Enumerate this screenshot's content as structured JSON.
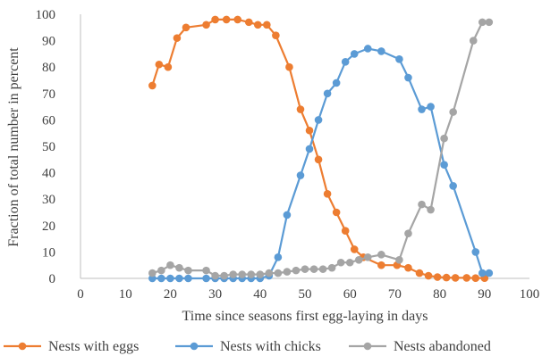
{
  "chart_data": {
    "type": "line",
    "xlabel": "Time since seasons first egg-laying in days",
    "ylabel": "Fraction of total number in percent",
    "xlim": [
      0,
      100
    ],
    "ylim": [
      0,
      100
    ],
    "x_ticks": [
      0,
      10,
      20,
      30,
      40,
      50,
      60,
      70,
      80,
      90,
      100
    ],
    "y_ticks": [
      0,
      10,
      20,
      30,
      40,
      50,
      60,
      70,
      80,
      90,
      100
    ],
    "x_tick_labels": [
      "0",
      "10",
      "20",
      "30",
      "40",
      "50",
      "60",
      "70",
      "80",
      "90",
      "100"
    ],
    "y_tick_labels": [
      "0",
      "10",
      "20",
      "30",
      "40",
      "50",
      "60",
      "70",
      "80",
      "90",
      "100"
    ],
    "grid": false,
    "legend_position": "bottom",
    "series": [
      {
        "name": "Nests with eggs",
        "color": "#ed7d31",
        "x": [
          16,
          17.5,
          19.5,
          21.5,
          23.5,
          28,
          30,
          32.5,
          35,
          37.5,
          39.5,
          41.5,
          43.5,
          46.5,
          49,
          51,
          53,
          55,
          57,
          59,
          61,
          63,
          67,
          70.5,
          73,
          75.5,
          77.5,
          79.5,
          81.5,
          83.5,
          86,
          88,
          90
        ],
        "y": [
          73,
          81,
          80,
          91,
          95,
          96,
          98,
          98,
          98,
          97,
          96,
          96,
          92,
          80,
          64,
          56,
          45,
          32,
          25,
          18,
          11,
          8,
          5,
          5,
          4,
          2,
          1,
          0.5,
          0.3,
          0.2,
          0.2,
          0.1,
          0.1
        ]
      },
      {
        "name": "Nests with chicks",
        "color": "#5b9bd5",
        "x": [
          16,
          18,
          20,
          22,
          24,
          28,
          30,
          32,
          34,
          36,
          38,
          40,
          42,
          44,
          46,
          49,
          51,
          53,
          55,
          57,
          59,
          61,
          64,
          67,
          71,
          73,
          76,
          78,
          81,
          83,
          88,
          89.5,
          91
        ],
        "y": [
          0,
          0,
          0,
          0,
          0,
          0,
          0,
          0,
          0,
          0,
          0,
          0,
          1,
          8,
          24,
          39,
          49,
          60,
          70,
          74,
          82,
          85,
          87,
          86,
          83,
          76,
          64,
          65,
          43,
          35,
          10,
          2,
          2
        ]
      },
      {
        "name": "Nests abandoned",
        "color": "#a5a5a5",
        "x": [
          16,
          18,
          20,
          22,
          24,
          28,
          30,
          32,
          34,
          36,
          38,
          40,
          42,
          44,
          46,
          48,
          50,
          52,
          54,
          56,
          58,
          60,
          62,
          64,
          67,
          71,
          73,
          76,
          78,
          81,
          83,
          87.5,
          89.5,
          91
        ],
        "y": [
          2,
          3,
          5,
          4,
          3,
          3,
          1,
          1,
          1.5,
          1.5,
          1.5,
          1.5,
          2,
          2,
          2.5,
          3,
          3.5,
          3.5,
          3.5,
          4,
          6,
          6,
          7,
          8,
          9,
          7,
          17,
          28,
          26,
          53,
          63,
          90,
          97,
          97
        ]
      }
    ]
  }
}
